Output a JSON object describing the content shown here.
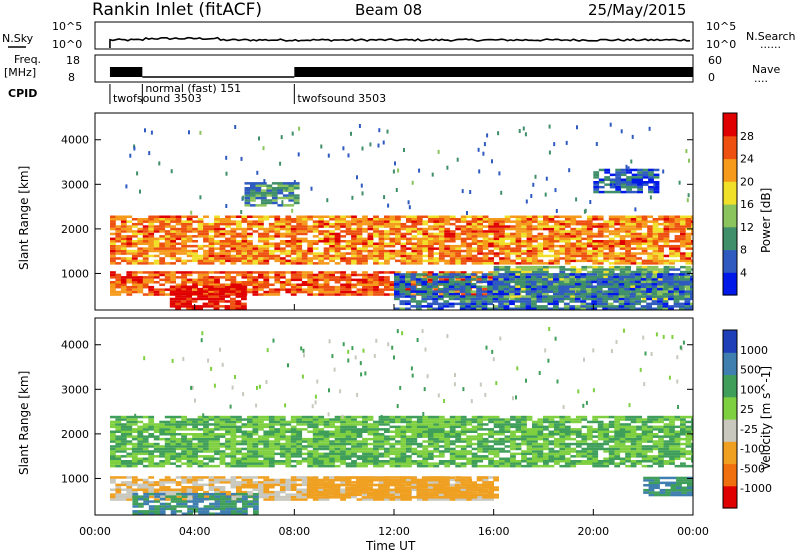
{
  "header": {
    "station": "Rankin Inlet (fitACF)",
    "beam": "Beam 08",
    "date": "25/May/2015"
  },
  "strip_labels": {
    "nsky": "N.Sky",
    "nsearch": "N.Search",
    "freq_line1": "Freq.",
    "freq_line2": "[MHz]",
    "nave": "Nave",
    "cpid": "CPID",
    "dots": "......",
    "dots_short": "...."
  },
  "strip_ticks": {
    "noise_top": "10^5",
    "noise_bottom": "10^0",
    "freq_top": "18",
    "freq_bottom": "8",
    "nave_top": "60",
    "nave_bottom": "0"
  },
  "cpid_segments": [
    {
      "label": "twofsound 3503",
      "start": 0.6,
      "end": 1.9,
      "row": 1
    },
    {
      "label": "normal (fast) 151",
      "start": 1.9,
      "end": 8.0,
      "row": 0
    },
    {
      "label": "twofsound 3503",
      "start": 8.0,
      "end": 24.0,
      "row": 1
    }
  ],
  "chart_data": [
    {
      "type": "heatmap",
      "name": "power",
      "xlabel": "",
      "ylabel": "Slant Range [km]",
      "xlim": [
        0,
        24
      ],
      "ylim": [
        180,
        4600
      ],
      "yticks": [
        "1000",
        "2000",
        "3000",
        "4000"
      ],
      "colorbar": {
        "label": "Power [dB]",
        "ticks": [
          "4",
          "8",
          "12",
          "16",
          "20",
          "24",
          "28"
        ],
        "range": [
          0,
          30
        ],
        "colors": [
          "#0018e8",
          "#2f5ac0",
          "#3f8f6a",
          "#8bc35c",
          "#f0e02a",
          "#f59a1a",
          "#ee5010",
          "#e00000"
        ]
      },
      "bands": [
        {
          "t0": 0.6,
          "t1": 24,
          "r0": 1200,
          "r1": 2300,
          "level": 22
        },
        {
          "t0": 0.6,
          "t1": 16,
          "r0": 500,
          "r1": 1050,
          "level": 24
        },
        {
          "t0": 3.0,
          "t1": 6.0,
          "r0": 180,
          "r1": 700,
          "level": 29
        },
        {
          "t0": 16,
          "t1": 24,
          "r0": 400,
          "r1": 1150,
          "level": 12
        },
        {
          "t0": 12,
          "t1": 24,
          "r0": 180,
          "r1": 1000,
          "level": 7
        },
        {
          "t0": 6.0,
          "t1": 8.0,
          "r0": 2500,
          "r1": 3000,
          "level": 9
        },
        {
          "t0": 20,
          "t1": 22.5,
          "r0": 2800,
          "r1": 3300,
          "level": 6
        }
      ]
    },
    {
      "type": "heatmap",
      "name": "velocity",
      "xlabel": "Time UT",
      "ylabel": "Slant Range [km]",
      "xlim": [
        0,
        24
      ],
      "ylim": [
        180,
        4600
      ],
      "xticks": [
        "00:00",
        "04:00",
        "08:00",
        "12:00",
        "16:00",
        "20:00",
        "00:00"
      ],
      "yticks": [
        "1000",
        "2000",
        "3000",
        "4000"
      ],
      "colorbar": {
        "label": "Velocity [m s^-1]",
        "ticks": [
          "1000",
          "500",
          "100",
          "25",
          "-25",
          "-100",
          "-500",
          "-1000"
        ],
        "colors": [
          "#1f3fb8",
          "#3f7fb0",
          "#3f9f5a",
          "#7fd040",
          "#c8c8be",
          "#f0a020",
          "#f07010",
          "#e00000"
        ]
      },
      "bands": [
        {
          "t0": 0.6,
          "t1": 24,
          "r0": 1250,
          "r1": 2400,
          "level": 25
        },
        {
          "t0": 0.6,
          "t1": 16,
          "r0": 500,
          "r1": 1000,
          "level": -100
        },
        {
          "t0": 1.5,
          "t1": 6.5,
          "r0": 180,
          "r1": 650,
          "level": 100
        },
        {
          "t0": 8.5,
          "t1": 16,
          "r0": 550,
          "r1": 1000,
          "level": -300
        },
        {
          "t0": 22,
          "t1": 24,
          "r0": 600,
          "r1": 1000,
          "level": 100
        }
      ]
    }
  ]
}
